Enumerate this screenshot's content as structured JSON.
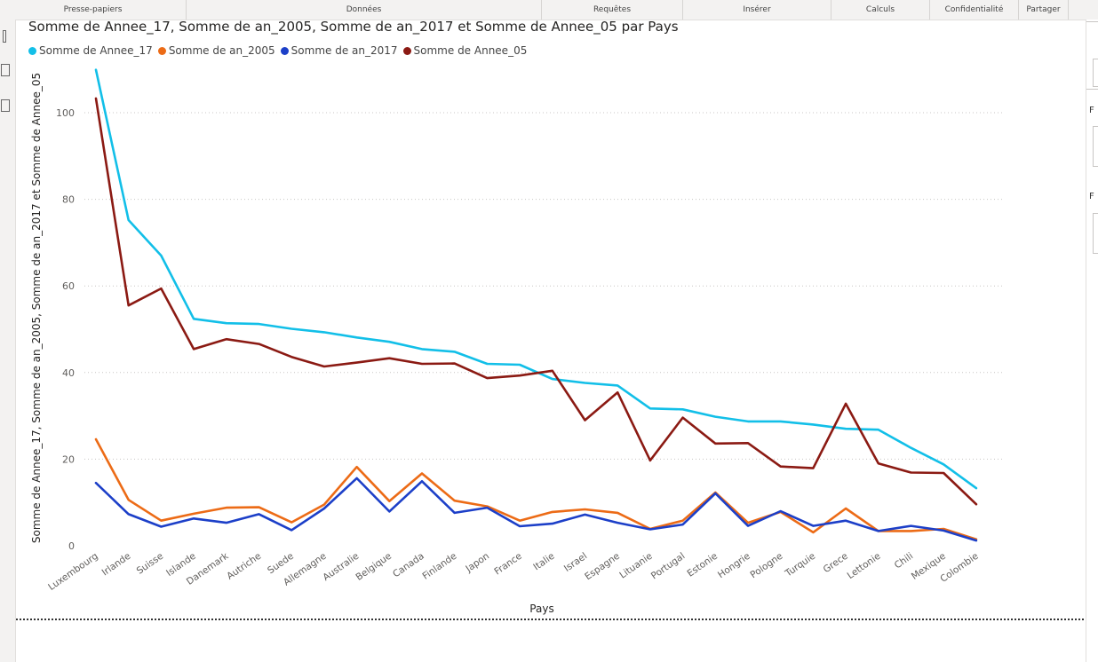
{
  "ribbon": {
    "groups": [
      {
        "label": "Presse-papiers"
      },
      {
        "label": "Données"
      },
      {
        "label": "Requêtes"
      },
      {
        "label": "Insérer"
      },
      {
        "label": "Calculs"
      },
      {
        "label": "Confidentialité"
      },
      {
        "label": "Partager"
      }
    ]
  },
  "right_panel": {
    "labels": [
      "F",
      "F"
    ]
  },
  "chart_data": {
    "type": "line",
    "title": "Somme de Annee_17, Somme de an_2005, Somme de an_2017 et Somme de Annee_05 par Pays",
    "xlabel": "Pays",
    "ylabel": "Somme de Annee_17, Somme de an_2005, Somme de an_2017 et Somme de Annee_05",
    "ylim": [
      0,
      110
    ],
    "yticks": [
      0,
      20,
      40,
      60,
      80,
      100
    ],
    "grid": true,
    "legend_position": "top-left",
    "categories": [
      "Luxembourg",
      "Irlande",
      "Suisse",
      "Islande",
      "Danemark",
      "Autriche",
      "Suede",
      "Allemagne",
      "Australie",
      "Belgique",
      "Canada",
      "Finlande",
      "Japon",
      "France",
      "Italie",
      "Israel",
      "Espagne",
      "Lituanie",
      "Portugal",
      "Estonie",
      "Hongrie",
      "Pologne",
      "Turquie",
      "Grece",
      "Lettonie",
      "Chili",
      "Mexique",
      "Colombie"
    ],
    "series": [
      {
        "name": "Somme de Annee_17",
        "color": "#12bfe8",
        "values": [
          109.9,
          75.2,
          67.0,
          52.4,
          51.4,
          51.2,
          50.1,
          49.3,
          48.1,
          47.1,
          45.4,
          44.8,
          42.0,
          41.8,
          38.5,
          37.6,
          37.0,
          31.7,
          31.5,
          29.8,
          28.7,
          28.7,
          28.0,
          27.0,
          26.8,
          22.6,
          18.8,
          13.3
        ]
      },
      {
        "name": "Somme de an_2005",
        "color": "#ec6b16",
        "values": [
          24.6,
          10.6,
          5.8,
          7.4,
          8.8,
          8.9,
          5.4,
          9.5,
          18.2,
          10.3,
          16.7,
          10.4,
          9.1,
          5.8,
          7.8,
          8.4,
          7.6,
          3.9,
          5.8,
          12.3,
          5.3,
          7.8,
          3.1,
          8.6,
          3.4,
          3.4,
          3.9,
          1.5
        ]
      },
      {
        "name": "Somme de an_2017",
        "color": "#1c3fc8",
        "values": [
          14.5,
          7.3,
          4.4,
          6.3,
          5.3,
          7.3,
          3.6,
          8.6,
          15.6,
          7.9,
          14.9,
          7.6,
          8.8,
          4.5,
          5.1,
          7.2,
          5.3,
          3.8,
          4.9,
          12.1,
          4.6,
          8.0,
          4.6,
          5.8,
          3.4,
          4.6,
          3.5,
          1.2
        ]
      },
      {
        "name": "Somme de Annee_05",
        "color": "#8b1a13",
        "values": [
          103.3,
          55.5,
          59.4,
          45.4,
          47.7,
          46.6,
          43.6,
          41.4,
          42.3,
          43.3,
          42.0,
          42.1,
          38.7,
          39.3,
          40.4,
          29.0,
          35.4,
          19.7,
          29.6,
          23.6,
          23.7,
          18.3,
          17.9,
          32.8,
          19.0,
          16.9,
          16.8,
          9.6
        ]
      }
    ]
  }
}
